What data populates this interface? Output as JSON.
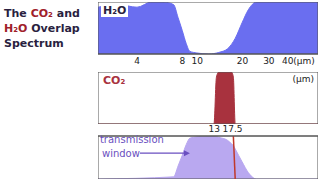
{
  "title": "The CO₂ and H₂O Overlap Spectrum",
  "chart_data": [
    {
      "type": "area",
      "title": "H₂O",
      "log": "x",
      "xlim": [
        2.2,
        64
      ],
      "xticks": [
        4,
        8,
        10,
        20,
        30,
        {
          "value": 40,
          "label": "40(μm)"
        }
      ],
      "ylim": [
        0,
        1
      ],
      "tick_labels": "x",
      "color": "#6a6ef0",
      "x": [
        2.2,
        3,
        4,
        5,
        6,
        7,
        7.5,
        8,
        8.5,
        9,
        10,
        12,
        14,
        16,
        18,
        20,
        22,
        25,
        30,
        40,
        64
      ],
      "values": [
        0.9,
        0.95,
        0.9,
        1,
        1,
        0.95,
        0.7,
        0.45,
        0.2,
        0.05,
        0.02,
        0,
        0.03,
        0.1,
        0.3,
        0.6,
        0.85,
        1,
        1,
        1,
        1
      ]
    },
    {
      "type": "area",
      "title": "CO₂",
      "xlabel": "(μm)",
      "log": "x",
      "xlim": [
        2.2,
        64
      ],
      "ylim": [
        0,
        1
      ],
      "tick_labels": false,
      "color": "#a8323e",
      "x": [
        2.2,
        12,
        13,
        13.5,
        14,
        17,
        17.5,
        18,
        64
      ],
      "values": [
        0,
        0,
        0,
        0.9,
        1,
        1,
        0.9,
        0,
        0
      ]
    },
    {
      "type": "area",
      "log": "x",
      "xlim": [
        2.2,
        64
      ],
      "xticks": [
        13,
        17.5
      ],
      "ylim": [
        0,
        1
      ],
      "tick_labels": "x",
      "annotations": [
        {
          "text": "transmission window",
          "x": 9,
          "y": 0.6
        }
      ],
      "x": [
        2.2,
        7,
        7.5,
        8,
        8.5,
        9,
        10,
        12,
        13,
        13.5,
        14,
        16,
        17,
        17.5,
        18,
        20,
        22,
        25,
        40,
        64
      ],
      "series": [
        {
          "type": "area",
          "color": "#b9a8f0",
          "values": [
            0,
            0.05,
            0.3,
            0.55,
            0.8,
            0.95,
            0.98,
            1,
            1,
            0.99,
            0.97,
            0.9,
            0.82,
            0.78,
            0.7,
            0.4,
            0.15,
            0,
            0,
            0
          ]
        },
        {
          "type": "line",
          "color": "#c0392b",
          "values": [
            null,
            null,
            null,
            null,
            null,
            null,
            null,
            null,
            null,
            null,
            null,
            null,
            null,
            1,
            0,
            null,
            null,
            null,
            null,
            null
          ]
        }
      ]
    }
  ]
}
